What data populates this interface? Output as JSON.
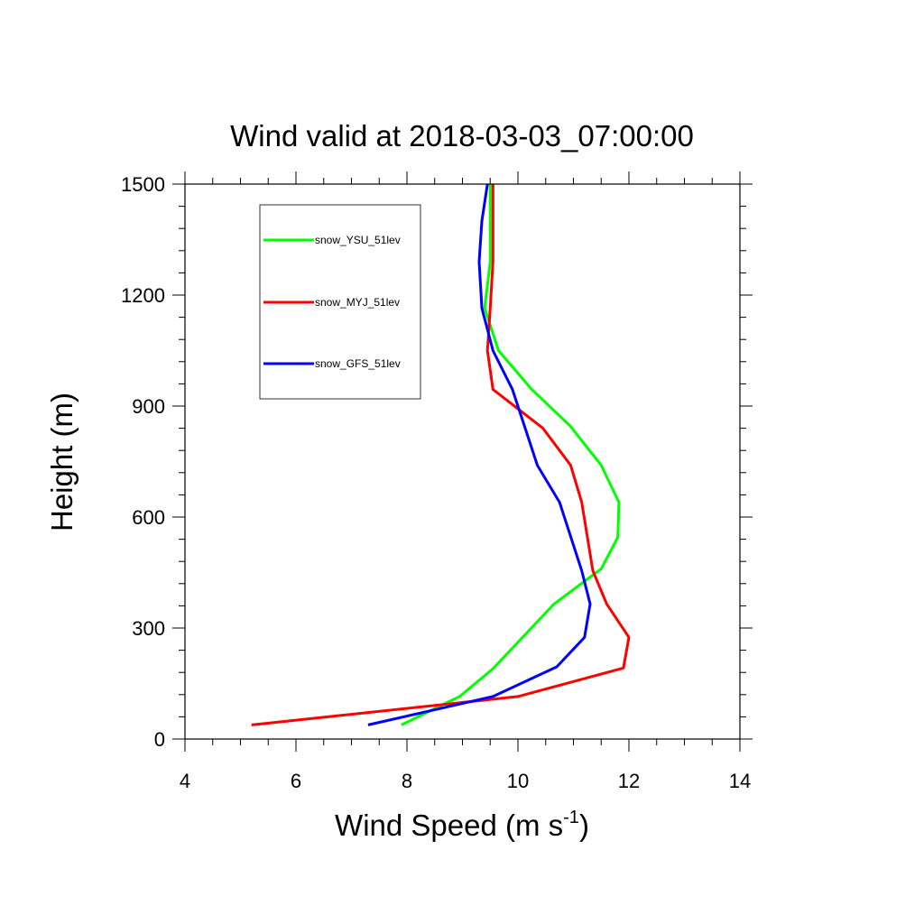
{
  "chart_data": {
    "type": "line",
    "title": "Wind valid at 2018-03-03_07:00:00",
    "xlabel": {
      "text": "Wind Speed (m s",
      "sup": "-1",
      "close": ")"
    },
    "ylabel": "Height (m)",
    "xlim": [
      4,
      14
    ],
    "ylim": [
      0,
      1500
    ],
    "xticks": [
      4,
      6,
      8,
      10,
      12,
      14
    ],
    "yticks": [
      0,
      300,
      600,
      900,
      1200,
      1500
    ],
    "xtick_labels": [
      "4",
      "6",
      "8",
      "10",
      "12",
      "14"
    ],
    "ytick_labels": [
      "0",
      "300",
      "600",
      "900",
      "1200",
      "1500"
    ],
    "legend_position": "top-left",
    "grid": false,
    "series": [
      {
        "name": "snow_YSU_51lev",
        "color": "#00ff00",
        "points": [
          [
            7.9,
            38
          ],
          [
            8.95,
            115
          ],
          [
            9.55,
            190
          ],
          [
            10.65,
            365
          ],
          [
            11.5,
            460
          ],
          [
            11.8,
            545
          ],
          [
            11.82,
            640
          ],
          [
            11.5,
            740
          ],
          [
            10.95,
            845
          ],
          [
            10.25,
            945
          ],
          [
            9.65,
            1050
          ],
          [
            9.4,
            1165
          ],
          [
            9.5,
            1290
          ],
          [
            9.5,
            1390
          ],
          [
            9.5,
            1500
          ]
        ]
      },
      {
        "name": "snow_MYJ_51lev",
        "color": "#ff0000",
        "points": [
          [
            5.2,
            38
          ],
          [
            10.0,
            115
          ],
          [
            11.9,
            192
          ],
          [
            12.0,
            275
          ],
          [
            11.6,
            365
          ],
          [
            11.35,
            455
          ],
          [
            11.15,
            640
          ],
          [
            10.95,
            740
          ],
          [
            10.45,
            840
          ],
          [
            9.55,
            945
          ],
          [
            9.45,
            1050
          ],
          [
            9.5,
            1165
          ],
          [
            9.55,
            1290
          ],
          [
            9.55,
            1400
          ],
          [
            9.55,
            1500
          ]
        ]
      },
      {
        "name": "snow_GFS_51lev",
        "color": "#0000ff",
        "points": [
          [
            7.3,
            38
          ],
          [
            9.55,
            115
          ],
          [
            10.7,
            195
          ],
          [
            11.2,
            275
          ],
          [
            11.3,
            365
          ],
          [
            11.15,
            455
          ],
          [
            10.75,
            640
          ],
          [
            10.35,
            740
          ],
          [
            9.9,
            945
          ],
          [
            9.55,
            1050
          ],
          [
            9.35,
            1165
          ],
          [
            9.3,
            1290
          ],
          [
            9.35,
            1400
          ],
          [
            9.45,
            1500
          ]
        ]
      }
    ]
  }
}
